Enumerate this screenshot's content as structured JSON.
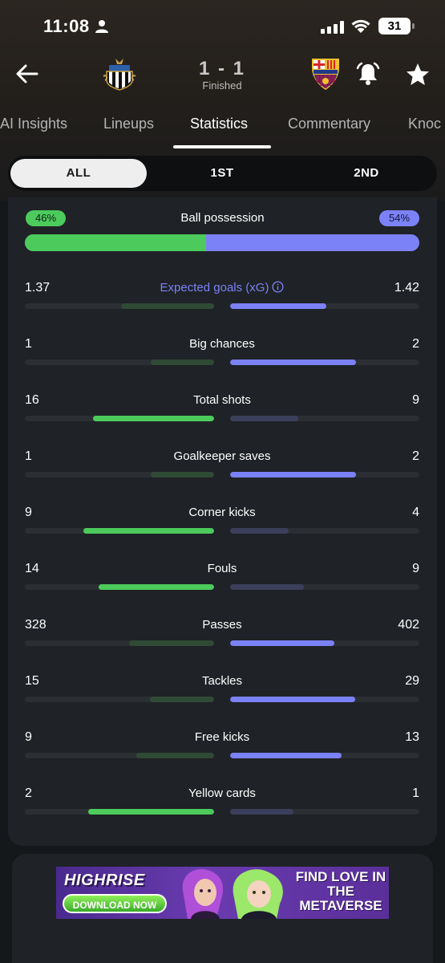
{
  "status_bar": {
    "time": "11:08",
    "battery": "31"
  },
  "match": {
    "score": "1 - 1",
    "status": "Finished",
    "home_crest_icon": "newcastle-crest-icon",
    "away_crest_icon": "barcelona-crest-icon"
  },
  "tabs": [
    {
      "label": "AI Insights"
    },
    {
      "label": "Lineups"
    },
    {
      "label": "Statistics",
      "active": true
    },
    {
      "label": "Commentary"
    },
    {
      "label": "Knoc"
    }
  ],
  "periods": [
    {
      "label": "ALL",
      "active": true
    },
    {
      "label": "1ST"
    },
    {
      "label": "2ND"
    }
  ],
  "colors": {
    "home": "#4ccb5c",
    "away": "#7b82f7",
    "home_dim": "#2f4a35",
    "away_dim": "#3b3f5c"
  },
  "possession": {
    "label": "Ball possession",
    "home": "46%",
    "away": "54%",
    "home_value": 46,
    "away_value": 54
  },
  "stats": [
    {
      "label": "Expected goals (xG)",
      "home": "1.37",
      "away": "1.42",
      "home_value": 1.37,
      "away_value": 1.42,
      "info": true
    },
    {
      "label": "Big chances",
      "home": "1",
      "away": "2",
      "home_value": 1,
      "away_value": 2
    },
    {
      "label": "Total shots",
      "home": "16",
      "away": "9",
      "home_value": 16,
      "away_value": 9
    },
    {
      "label": "Goalkeeper saves",
      "home": "1",
      "away": "2",
      "home_value": 1,
      "away_value": 2
    },
    {
      "label": "Corner kicks",
      "home": "9",
      "away": "4",
      "home_value": 9,
      "away_value": 4
    },
    {
      "label": "Fouls",
      "home": "14",
      "away": "9",
      "home_value": 14,
      "away_value": 9
    },
    {
      "label": "Passes",
      "home": "328",
      "away": "402",
      "home_value": 328,
      "away_value": 402
    },
    {
      "label": "Tackles",
      "home": "15",
      "away": "29",
      "home_value": 15,
      "away_value": 29
    },
    {
      "label": "Free kicks",
      "home": "9",
      "away": "13",
      "home_value": 9,
      "away_value": 13
    },
    {
      "label": "Yellow cards",
      "home": "2",
      "away": "1",
      "home_value": 2,
      "away_value": 1
    }
  ],
  "ad": {
    "brand": "HIGHRISE",
    "cta": "DOWNLOAD NOW",
    "tagline": "FIND LOVE IN THE METAVERSE"
  }
}
